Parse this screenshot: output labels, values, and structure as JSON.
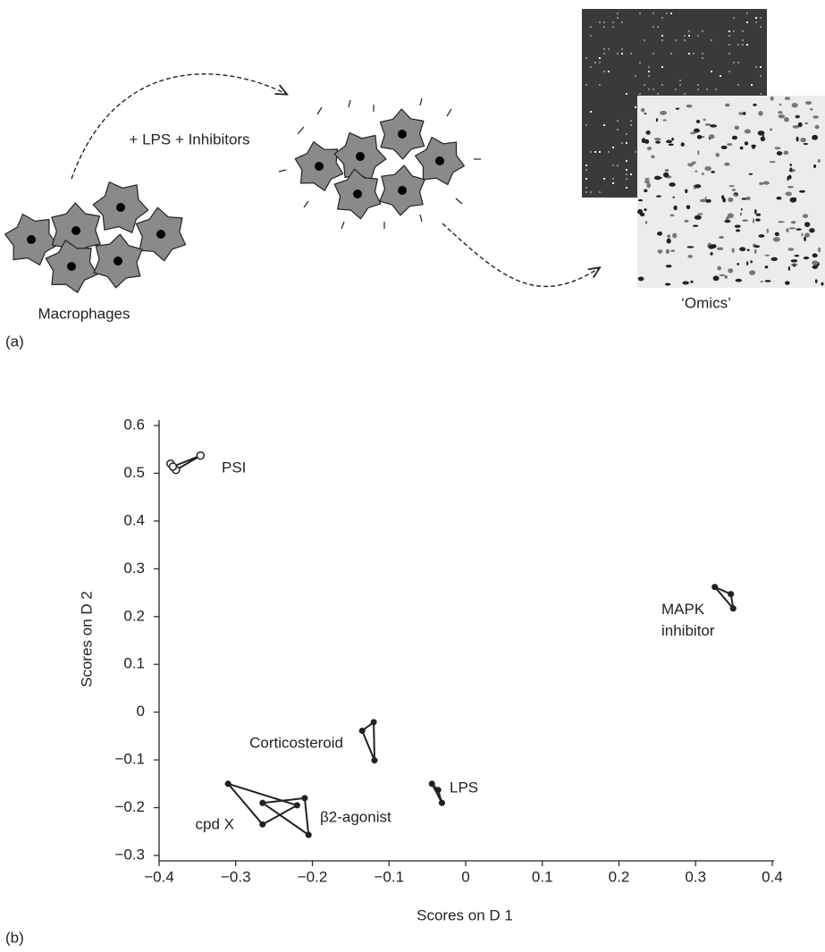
{
  "diagram": {
    "treatment": "+ LPS + Inhibitors",
    "cells": "Macrophages",
    "omics": "‘Omics’",
    "panel_a": "(a)",
    "panel_b": "(b)"
  },
  "chart_data": {
    "type": "scatter",
    "xlabel": "Scores on D 1",
    "ylabel": "Scores on D 2",
    "xlim": [
      -0.4,
      0.4
    ],
    "ylim": [
      -0.3,
      0.6
    ],
    "xticks": [
      {
        "value": -0.4,
        "label": "−0.4"
      },
      {
        "value": -0.3,
        "label": "−0.3"
      },
      {
        "value": -0.2,
        "label": "−0.2"
      },
      {
        "value": -0.1,
        "label": "−0.1"
      },
      0,
      0.1,
      0.2,
      0.3,
      0.4
    ],
    "yticks": [
      {
        "value": -0.3,
        "label": "−0.3"
      },
      {
        "value": -0.2,
        "label": "−0.2"
      },
      {
        "value": -0.1,
        "label": "−0.1"
      },
      0,
      0.1,
      0.2,
      0.3,
      0.4,
      0.5,
      0.6
    ],
    "series": [
      {
        "name": "PSI",
        "color": "#222222",
        "marker": "circle-open",
        "x": [
          -0.385,
          -0.378,
          -0.346,
          -0.382
        ],
        "values": [
          0.52,
          0.507,
          0.537,
          0.514
        ]
      },
      {
        "name": "MAPK inhibitor",
        "color": "#222222",
        "marker": "dot",
        "x": [
          0.325,
          0.346,
          0.349
        ],
        "values": [
          0.262,
          0.247,
          0.217
        ]
      },
      {
        "name": "Corticosteroid",
        "color": "#222222",
        "marker": "dot",
        "x": [
          -0.12,
          -0.135,
          -0.119
        ],
        "values": [
          -0.021,
          -0.039,
          -0.101
        ]
      },
      {
        "name": "LPS",
        "color": "#222222",
        "marker": "dot",
        "x": [
          -0.044,
          -0.036,
          -0.031
        ],
        "values": [
          -0.15,
          -0.163,
          -0.19
        ]
      },
      {
        "name": "cpd X",
        "color": "#222222",
        "marker": "dot",
        "x": [
          -0.31,
          -0.265,
          -0.22
        ],
        "values": [
          -0.15,
          -0.235,
          -0.195
        ]
      },
      {
        "name": "β2-agonist",
        "color": "#222222",
        "marker": "dot",
        "x": [
          -0.265,
          -0.21,
          -0.205
        ],
        "values": [
          -0.19,
          -0.18,
          -0.257
        ]
      }
    ]
  }
}
